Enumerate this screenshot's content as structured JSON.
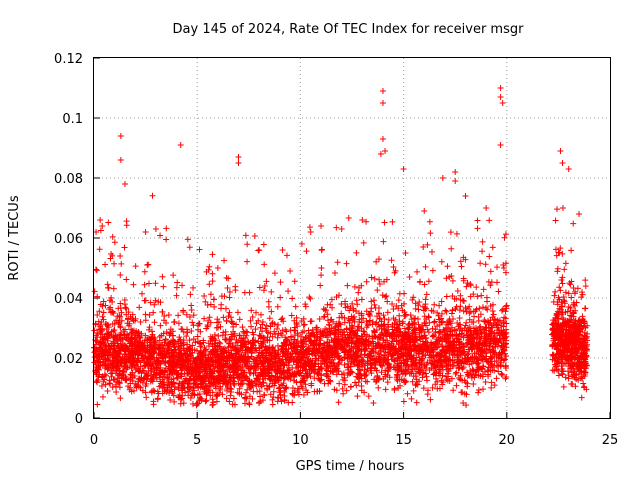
{
  "chart_data": {
    "type": "scatter",
    "title": "Day 145 of 2024, Rate Of TEC Index for receiver msgr",
    "xlabel": "GPS time / hours",
    "ylabel": "ROTI / TECUs",
    "xlim": [
      0,
      25
    ],
    "ylim": [
      0,
      0.12
    ],
    "xticks": [
      "0",
      "5",
      "10",
      "15",
      "20",
      "25"
    ],
    "yticks": [
      "0",
      "0.02",
      "0.04",
      "0.06",
      "0.08",
      "0.1",
      "0.12"
    ],
    "grid": true,
    "marker": "+",
    "color": "#ff0000",
    "series": [
      {
        "x": [
          0.3,
          1.3,
          1.3,
          4.2,
          7.0,
          7.0,
          14.0,
          14.0,
          14.0,
          14.1,
          13.9,
          19.7,
          19.7,
          19.8,
          19.7,
          22.6,
          22.7,
          23.0,
          15.0,
          16.9,
          17.5,
          17.5,
          0.1,
          0.4,
          1.5,
          2.5,
          3.0,
          6.0,
          8.0,
          9.5,
          10.5,
          11.0,
          12.0,
          13.0,
          16.0,
          18.0,
          19.0,
          23.5
        ],
        "y": [
          0.066,
          0.094,
          0.086,
          0.091,
          0.087,
          0.085,
          0.109,
          0.105,
          0.093,
          0.089,
          0.088,
          0.11,
          0.107,
          0.105,
          0.091,
          0.089,
          0.085,
          0.083,
          0.083,
          0.08,
          0.082,
          0.079,
          0.062,
          0.064,
          0.078,
          0.062,
          0.063,
          0.05,
          0.056,
          0.049,
          0.062,
          0.064,
          0.063,
          0.066,
          0.069,
          0.074,
          0.07,
          0.068
        ]
      }
    ],
    "density_profile": {
      "description": "Dense band of points across hours 0-20 and 22.2-24 shown as hour, typical ROTI level, spread",
      "hours": [
        0,
        1,
        2,
        3,
        4,
        5,
        6,
        7,
        8,
        9,
        10,
        11,
        12,
        13,
        14,
        15,
        16,
        17,
        18,
        19,
        20,
        22.2,
        23,
        24
      ],
      "center": [
        0.022,
        0.022,
        0.02,
        0.019,
        0.018,
        0.016,
        0.017,
        0.018,
        0.017,
        0.018,
        0.019,
        0.021,
        0.022,
        0.022,
        0.023,
        0.022,
        0.022,
        0.022,
        0.022,
        0.024,
        0.024,
        0.026,
        0.025,
        0.02
      ]
    }
  }
}
